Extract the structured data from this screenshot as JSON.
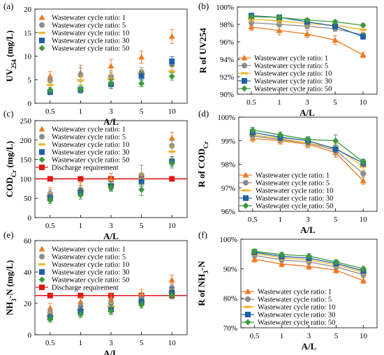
{
  "chart_data": [
    {
      "id": "a",
      "type": "scatter",
      "panel_label": "(a)",
      "ylabel": "UV254 (mg/L)",
      "xlabel": "A/L",
      "ylim": [
        0,
        20
      ],
      "yticks": [
        0,
        5,
        10,
        15,
        20
      ],
      "ytick_labels": [
        "0",
        "5",
        "10",
        "15",
        "20"
      ],
      "categories": [
        "0.5",
        "1",
        "3",
        "5",
        "10"
      ],
      "legend_position": "top-left",
      "series": [
        {
          "name": "Wastewater cycle ratio: 1",
          "marker": "triangle",
          "color": "#F07820",
          "values": [
            5.7,
            6.5,
            7.9,
            9.8,
            14.2
          ],
          "errors": [
            1.0,
            1.6,
            1.4,
            1.3,
            1.5
          ]
        },
        {
          "name": "Wastewater cycle ratio: 5",
          "marker": "circle",
          "color": "#8C8C8C",
          "values": [
            4.8,
            6.0,
            5.7,
            6.6,
            8.2
          ],
          "errors": [
            1.0,
            1.5,
            1.2,
            1.0,
            1.2
          ]
        },
        {
          "name": "Wastewater cycle ratio: 10",
          "marker": "dash",
          "color": "#F0B428",
          "values": [
            3.9,
            4.9,
            5.1,
            6.3,
            6.7
          ],
          "errors": [
            0.8,
            1.0,
            1.0,
            0.9,
            1.0
          ]
        },
        {
          "name": "Wastewater cycle ratio: 30",
          "marker": "square",
          "color": "#1F5FA8",
          "values": [
            2.4,
            2.9,
            4.0,
            5.8,
            8.9
          ],
          "errors": [
            0.6,
            0.8,
            0.9,
            0.8,
            1.0
          ]
        },
        {
          "name": "Wastewater cycle ratio: 50",
          "marker": "diamond",
          "color": "#3C9A3C",
          "values": [
            2.8,
            3.0,
            4.3,
            4.2,
            5.7
          ],
          "errors": [
            0.6,
            0.7,
            0.8,
            0.7,
            0.8
          ]
        }
      ]
    },
    {
      "id": "b",
      "type": "line",
      "panel_label": "(b)",
      "ylabel": "R of UV254",
      "xlabel": "A/L",
      "ylim": [
        90,
        100
      ],
      "yticks": [
        90,
        92,
        94,
        96,
        98,
        100
      ],
      "ytick_labels": [
        "90%",
        "92%",
        "94%",
        "96%",
        "98%",
        "100%"
      ],
      "categories": [
        "0.5",
        "1",
        "3",
        "5",
        "10"
      ],
      "legend_position": "bottom-left",
      "series": [
        {
          "name": "Wastewater cycle ratio: 1",
          "marker": "triangle",
          "color": "#F07820",
          "values": [
            97.7,
            97.3,
            96.9,
            96.2,
            94.5
          ],
          "errors": [
            0.4,
            0.5,
            0.4,
            0.5,
            0.3
          ]
        },
        {
          "name": "Wastewater cycle ratio: 5",
          "marker": "circle",
          "color": "#8C8C8C",
          "values": [
            98.2,
            98.0,
            97.8,
            97.5,
            96.8
          ],
          "errors": [
            0.3,
            0.3,
            0.3,
            0.3,
            0.3
          ]
        },
        {
          "name": "Wastewater cycle ratio: 10",
          "marker": "dash",
          "color": "#F0B428",
          "values": [
            98.6,
            98.4,
            98.1,
            97.9,
            97.4
          ],
          "errors": [
            0.3,
            0.3,
            0.3,
            0.3,
            0.3
          ]
        },
        {
          "name": "Wastewater cycle ratio: 30",
          "marker": "square",
          "color": "#1F5FA8",
          "values": [
            99.0,
            98.8,
            98.3,
            97.8,
            96.6
          ],
          "errors": [
            0.3,
            0.3,
            0.3,
            0.3,
            0.3
          ]
        },
        {
          "name": "Wastewater cycle ratio: 50",
          "marker": "diamond",
          "color": "#3C9A3C",
          "values": [
            98.9,
            98.8,
            98.5,
            98.3,
            97.9
          ],
          "errors": [
            0.2,
            0.2,
            0.2,
            0.2,
            0.2
          ]
        }
      ]
    },
    {
      "id": "c",
      "type": "scatter",
      "panel_label": "(c)",
      "ylabel": "CODCr (mg/L)",
      "xlabel": "A/L",
      "ylim": [
        0,
        250
      ],
      "yticks": [
        0,
        50,
        100,
        150,
        200,
        250
      ],
      "ytick_labels": [
        "0",
        "50",
        "100",
        "150",
        "200",
        "250"
      ],
      "categories": [
        "0.5",
        "1",
        "3",
        "5",
        "10"
      ],
      "legend_position": "top-left",
      "reference_line": {
        "name": "Discharge requirement",
        "value": 100,
        "color": "#E01818"
      },
      "series": [
        {
          "name": "Wastewater cycle ratio: 1",
          "marker": "triangle",
          "color": "#F07820",
          "values": [
            65,
            75,
            100,
            100,
            205
          ],
          "errors": [
            12,
            15,
            14,
            15,
            15
          ]
        },
        {
          "name": "Wastewater cycle ratio: 5",
          "marker": "circle",
          "color": "#8C8C8C",
          "values": [
            62,
            72,
            82,
            110,
            185
          ],
          "errors": [
            10,
            12,
            12,
            25,
            14
          ]
        },
        {
          "name": "Wastewater cycle ratio: 10",
          "marker": "dash",
          "color": "#F0B428",
          "values": [
            55,
            70,
            85,
            100,
            170
          ],
          "errors": [
            10,
            11,
            11,
            14,
            14
          ]
        },
        {
          "name": "Wastewater cycle ratio: 30",
          "marker": "square",
          "color": "#1F5FA8",
          "values": [
            50,
            65,
            82,
            93,
            145
          ],
          "errors": [
            9,
            10,
            10,
            12,
            12
          ]
        },
        {
          "name": "Wastewater cycle ratio: 50",
          "marker": "diamond",
          "color": "#3C9A3C",
          "values": [
            45,
            58,
            78,
            72,
            140
          ],
          "errors": [
            8,
            10,
            10,
            15,
            12
          ]
        }
      ]
    },
    {
      "id": "d",
      "type": "line",
      "panel_label": "(d)",
      "ylabel": "R of CODCr",
      "xlabel": "A/L",
      "ylim": [
        96,
        100
      ],
      "yticks": [
        96,
        97,
        98,
        99,
        100
      ],
      "ytick_labels": [
        "96%",
        "97%",
        "98%",
        "99%",
        "100%"
      ],
      "categories": [
        "0.5",
        "1",
        "3",
        "5",
        "10"
      ],
      "legend_position": "bottom-left",
      "series": [
        {
          "name": "Wastewater cycle ratio: 1",
          "marker": "triangle",
          "color": "#F07820",
          "values": [
            99.1,
            99.0,
            98.85,
            98.5,
            97.3
          ],
          "errors": [
            0.15,
            0.15,
            0.15,
            0.2,
            0.15
          ]
        },
        {
          "name": "Wastewater cycle ratio: 5",
          "marker": "circle",
          "color": "#8C8C8C",
          "values": [
            99.2,
            99.05,
            98.9,
            98.6,
            97.6
          ],
          "errors": [
            0.15,
            0.15,
            0.2,
            0.25,
            0.15
          ]
        },
        {
          "name": "Wastewater cycle ratio: 10",
          "marker": "dash",
          "color": "#F0B428",
          "values": [
            99.25,
            99.1,
            98.9,
            98.7,
            97.9
          ],
          "errors": [
            0.15,
            0.15,
            0.15,
            0.2,
            0.15
          ]
        },
        {
          "name": "Wastewater cycle ratio: 30",
          "marker": "square",
          "color": "#1F5FA8",
          "values": [
            99.35,
            99.15,
            99.0,
            98.65,
            98.05
          ],
          "errors": [
            0.15,
            0.15,
            0.15,
            0.15,
            0.15
          ]
        },
        {
          "name": "Wastewater cycle ratio: 50",
          "marker": "diamond",
          "color": "#3C9A3C",
          "values": [
            99.45,
            99.25,
            99.05,
            99.0,
            98.1
          ],
          "errors": [
            0.12,
            0.12,
            0.12,
            0.25,
            0.12
          ]
        }
      ]
    },
    {
      "id": "e",
      "type": "scatter",
      "panel_label": "(e)",
      "ylabel": "NH3-N (mg/L)",
      "xlabel": "A/L",
      "ylim": [
        0,
        60
      ],
      "yticks": [
        0,
        20,
        40,
        60
      ],
      "ytick_labels": [
        "0",
        "20",
        "40",
        "60"
      ],
      "categories": [
        "0.5",
        "1",
        "3",
        "5",
        "10"
      ],
      "legend_position": "top-left",
      "reference_line": {
        "name": "Discharge requirement",
        "value": 25,
        "color": "#E01818"
      },
      "series": [
        {
          "name": "Wastewater cycle ratio: 1",
          "marker": "triangle",
          "color": "#F07820",
          "values": [
            17,
            21,
            23,
            26,
            35
          ],
          "errors": [
            3,
            3,
            3,
            3,
            3
          ]
        },
        {
          "name": "Wastewater cycle ratio: 5",
          "marker": "circle",
          "color": "#8C8C8C",
          "values": [
            14,
            18,
            20,
            23,
            30
          ],
          "errors": [
            3,
            3,
            3,
            3,
            3
          ]
        },
        {
          "name": "Wastewater cycle ratio: 10",
          "marker": "dash",
          "color": "#F0B428",
          "values": [
            12,
            16,
            18,
            21,
            27
          ],
          "errors": [
            2,
            2,
            2,
            2,
            2
          ]
        },
        {
          "name": "Wastewater cycle ratio: 30",
          "marker": "square",
          "color": "#1F5FA8",
          "values": [
            11,
            15,
            16,
            21,
            27
          ],
          "errors": [
            2,
            3,
            3,
            2,
            3
          ]
        },
        {
          "name": "Wastewater cycle ratio: 50",
          "marker": "diamond",
          "color": "#3C9A3C",
          "values": [
            10,
            13,
            15,
            19,
            25
          ],
          "errors": [
            2,
            2,
            2,
            2,
            2
          ]
        }
      ]
    },
    {
      "id": "f",
      "type": "line",
      "panel_label": "(f)",
      "ylabel": "R of NH3-N",
      "xlabel": "A/L",
      "ylim": [
        70,
        100
      ],
      "yticks": [
        70,
        80,
        90,
        100
      ],
      "ytick_labels": [
        "70%",
        "80%",
        "90%",
        "100%"
      ],
      "categories": [
        "0.5",
        "1",
        "3",
        "5",
        "10"
      ],
      "legend_position": "bottom-left",
      "series": [
        {
          "name": "Wastewater cycle ratio: 1",
          "marker": "triangle",
          "color": "#F07820",
          "values": [
            93.2,
            91.6,
            90.8,
            89.5,
            86.0
          ],
          "errors": [
            1.0,
            1.0,
            1.0,
            1.0,
            1.0
          ]
        },
        {
          "name": "Wastewater cycle ratio: 5",
          "marker": "circle",
          "color": "#8C8C8C",
          "values": [
            94.5,
            93.0,
            92.3,
            90.6,
            88.0
          ],
          "errors": [
            0.8,
            0.8,
            0.8,
            0.8,
            0.8
          ]
        },
        {
          "name": "Wastewater cycle ratio: 10",
          "marker": "dash",
          "color": "#F0B428",
          "values": [
            95.2,
            93.7,
            93.0,
            91.3,
            88.8
          ],
          "errors": [
            0.8,
            0.8,
            0.8,
            0.8,
            0.8
          ]
        },
        {
          "name": "Wastewater cycle ratio: 30",
          "marker": "square",
          "color": "#1F5FA8",
          "values": [
            95.6,
            94.2,
            93.6,
            91.8,
            89.3
          ],
          "errors": [
            0.8,
            0.8,
            0.8,
            0.8,
            0.8
          ]
        },
        {
          "name": "Wastewater cycle ratio: 50",
          "marker": "diamond",
          "color": "#3C9A3C",
          "values": [
            95.9,
            94.8,
            94.3,
            92.3,
            90.0
          ],
          "errors": [
            0.8,
            0.8,
            0.8,
            0.8,
            0.8
          ]
        }
      ]
    }
  ]
}
